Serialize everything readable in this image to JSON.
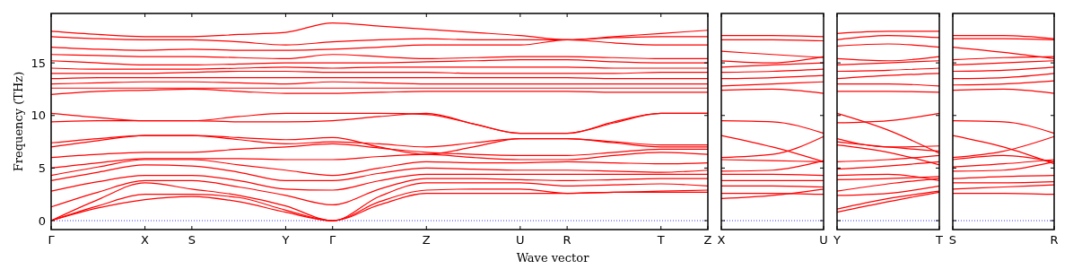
{
  "chart_data": [
    {
      "type": "line",
      "ylabel": "Frequency (THz)",
      "xlabel": "Wave vector",
      "color": "#ff0000",
      "grid": false,
      "line_style": "solid",
      "marker": "none",
      "categories": [
        "Γ",
        null,
        "X",
        "S",
        null,
        "Y",
        "Γ",
        null,
        "Z",
        null,
        "U",
        "R",
        null,
        "T",
        "Z"
      ],
      "ylim": [
        -0.85,
        19.7
      ],
      "yticks": [
        0,
        5,
        10,
        15
      ],
      "ref_lines": [
        {
          "axis": "y",
          "value": 0,
          "color": "#0000ff",
          "line_style": "dotted"
        }
      ],
      "series": [
        {
          "values": [
            0,
            1.2,
            2.0,
            2.3,
            1.8,
            0.8,
            0,
            1.5,
            2.6,
            2.6,
            2.6,
            2.6,
            2.7,
            2.7,
            2.7
          ]
        },
        {
          "values": [
            0,
            1.4,
            2.5,
            2.5,
            2.2,
            1.0,
            0,
            1.8,
            2.9,
            3.0,
            3.0,
            2.6,
            2.7,
            2.8,
            2.9
          ]
        },
        {
          "values": [
            0,
            2.0,
            3.6,
            3.0,
            2.4,
            1.4,
            0,
            2.3,
            3.6,
            3.6,
            3.6,
            3.3,
            3.4,
            3.5,
            3.3
          ]
        },
        {
          "values": [
            1.3,
            2.7,
            3.8,
            3.8,
            3.2,
            2.4,
            1.5,
            3.0,
            4.0,
            4.0,
            3.9,
            3.8,
            3.9,
            4.0,
            4.0
          ]
        },
        {
          "values": [
            2.8,
            3.7,
            4.3,
            4.3,
            3.8,
            3.0,
            2.9,
            3.8,
            4.4,
            4.4,
            4.4,
            4.4,
            4.4,
            4.4,
            4.4
          ]
        },
        {
          "values": [
            3.8,
            4.6,
            5.3,
            5.2,
            4.6,
            3.8,
            3.8,
            4.5,
            5.0,
            4.9,
            4.8,
            4.8,
            4.7,
            4.6,
            4.8
          ]
        },
        {
          "values": [
            4.3,
            5.1,
            5.8,
            5.8,
            5.3,
            4.8,
            4.3,
            5.0,
            5.6,
            5.5,
            5.5,
            5.6,
            5.5,
            5.4,
            5.5
          ]
        },
        {
          "values": [
            5.0,
            5.5,
            5.9,
            5.9,
            5.9,
            5.8,
            5.8,
            6.1,
            6.3,
            6.0,
            5.8,
            5.8,
            6.2,
            6.5,
            6.3
          ]
        },
        {
          "values": [
            6.0,
            6.3,
            6.5,
            6.5,
            6.8,
            7.0,
            7.3,
            6.9,
            6.5,
            6.3,
            6.2,
            6.2,
            6.5,
            6.8,
            6.8
          ]
        },
        {
          "values": [
            7.0,
            7.6,
            8.1,
            8.1,
            7.7,
            7.3,
            7.5,
            7.3,
            7.0,
            7.4,
            7.8,
            7.8,
            7.4,
            7.0,
            7.0
          ]
        },
        {
          "values": [
            7.4,
            7.8,
            8.1,
            8.1,
            7.9,
            7.7,
            7.9,
            7.0,
            6.3,
            7.0,
            7.8,
            7.8,
            7.5,
            7.2,
            7.2
          ]
        },
        {
          "values": [
            9.4,
            9.5,
            9.5,
            9.5,
            9.4,
            9.4,
            9.5,
            9.9,
            10.2,
            9.2,
            8.3,
            8.3,
            9.4,
            10.2,
            10.2
          ]
        },
        {
          "values": [
            10.2,
            9.8,
            9.5,
            9.5,
            9.9,
            10.2,
            10.2,
            10.2,
            10.1,
            9.2,
            8.3,
            8.3,
            9.3,
            10.2,
            10.2
          ]
        },
        {
          "values": [
            12.0,
            12.3,
            12.4,
            12.5,
            12.3,
            12.1,
            12.1,
            12.2,
            12.3,
            12.3,
            12.3,
            12.3,
            12.2,
            12.2,
            12.2
          ]
        },
        {
          "values": [
            12.6,
            12.6,
            12.6,
            12.6,
            12.6,
            12.6,
            12.6,
            12.6,
            12.6,
            12.6,
            12.6,
            12.6,
            12.6,
            12.6,
            12.6
          ]
        },
        {
          "values": [
            13.0,
            13.1,
            13.2,
            13.2,
            13.1,
            13.0,
            13.2,
            13.1,
            13.0,
            13.0,
            13.0,
            13.0,
            13.0,
            13.0,
            13.0
          ]
        },
        {
          "values": [
            13.5,
            13.6,
            13.6,
            13.6,
            13.6,
            13.6,
            13.6,
            13.6,
            13.6,
            13.6,
            13.6,
            13.6,
            13.5,
            13.5,
            13.5
          ]
        },
        {
          "values": [
            14.0,
            14.0,
            14.0,
            14.1,
            14.2,
            14.2,
            14.1,
            14.1,
            14.1,
            14.0,
            14.0,
            14.0,
            14.0,
            14.1,
            14.1
          ]
        },
        {
          "values": [
            14.5,
            14.4,
            14.4,
            14.4,
            14.5,
            14.6,
            14.5,
            14.6,
            14.6,
            14.6,
            14.6,
            14.6,
            14.5,
            14.5,
            14.5
          ]
        },
        {
          "values": [
            15.2,
            15.0,
            14.8,
            14.8,
            14.9,
            15.0,
            15.0,
            15.0,
            15.1,
            15.2,
            15.3,
            15.3,
            15.1,
            15.0,
            15.0
          ]
        },
        {
          "values": [
            15.8,
            15.7,
            15.6,
            15.6,
            15.5,
            15.4,
            15.8,
            15.6,
            15.4,
            15.5,
            15.6,
            15.6,
            15.5,
            15.4,
            15.4
          ]
        },
        {
          "values": [
            16.5,
            16.3,
            16.2,
            16.3,
            16.2,
            16.2,
            16.3,
            16.5,
            16.7,
            16.7,
            16.7,
            17.2,
            16.9,
            16.7,
            16.7
          ]
        },
        {
          "values": [
            17.5,
            17.3,
            17.2,
            17.2,
            17.0,
            16.7,
            17.0,
            17.2,
            17.3,
            17.2,
            17.2,
            17.2,
            17.4,
            17.5,
            17.5
          ]
        },
        {
          "values": [
            18.0,
            17.7,
            17.5,
            17.5,
            17.7,
            17.9,
            18.8,
            18.5,
            18.2,
            17.9,
            17.6,
            17.2,
            17.5,
            17.8,
            18.1
          ]
        }
      ]
    },
    {
      "type": "line",
      "color": "#ff0000",
      "grid": false,
      "line_style": "solid",
      "marker": "none",
      "tick_labels": "x",
      "categories": [
        "X",
        null,
        "U"
      ],
      "ylim": [
        -0.85,
        19.7
      ],
      "yticks": [
        0,
        5,
        10,
        15
      ],
      "ref_lines": [
        {
          "axis": "y",
          "value": 0,
          "color": "#0000ff",
          "line_style": "dotted"
        }
      ],
      "series": [
        {
          "values": [
            2.1,
            2.4,
            3.0
          ]
        },
        {
          "values": [
            2.6,
            2.6,
            2.5
          ]
        },
        {
          "values": [
            3.3,
            3.3,
            3.2
          ]
        },
        {
          "values": [
            3.8,
            3.8,
            3.8
          ]
        },
        {
          "values": [
            4.4,
            4.4,
            4.3
          ]
        },
        {
          "values": [
            4.7,
            4.8,
            5.7
          ]
        },
        {
          "values": [
            5.8,
            5.7,
            5.6
          ]
        },
        {
          "values": [
            6.0,
            6.3,
            8.0
          ]
        },
        {
          "values": [
            8.1,
            7.0,
            5.6
          ]
        },
        {
          "values": [
            9.5,
            9.4,
            8.3
          ]
        },
        {
          "values": [
            12.4,
            12.5,
            12.1
          ]
        },
        {
          "values": [
            12.8,
            13.0,
            13.2
          ]
        },
        {
          "values": [
            13.5,
            13.6,
            13.8
          ]
        },
        {
          "values": [
            14.1,
            14.2,
            14.4
          ]
        },
        {
          "values": [
            14.6,
            14.8,
            15.0
          ]
        },
        {
          "values": [
            15.2,
            15.0,
            15.6
          ]
        },
        {
          "values": [
            16.1,
            15.8,
            15.5
          ]
        },
        {
          "values": [
            17.2,
            17.2,
            17.1
          ]
        },
        {
          "values": [
            17.6,
            17.6,
            17.5
          ]
        }
      ]
    },
    {
      "type": "line",
      "color": "#ff0000",
      "grid": false,
      "line_style": "solid",
      "marker": "none",
      "tick_labels": "x",
      "categories": [
        "Y",
        null,
        "T"
      ],
      "ylim": [
        -0.85,
        19.7
      ],
      "yticks": [
        0,
        5,
        10,
        15
      ],
      "ref_lines": [
        {
          "axis": "y",
          "value": 0,
          "color": "#0000ff",
          "line_style": "dotted"
        }
      ],
      "series": [
        {
          "values": [
            0.8,
            1.8,
            2.7
          ]
        },
        {
          "values": [
            1.1,
            2.1,
            2.8
          ]
        },
        {
          "values": [
            2.4,
            2.6,
            3.3
          ]
        },
        {
          "values": [
            2.8,
            3.5,
            4.0
          ]
        },
        {
          "values": [
            3.9,
            4.0,
            4.2
          ]
        },
        {
          "values": [
            4.3,
            4.4,
            3.8
          ]
        },
        {
          "values": [
            4.9,
            5.2,
            5.6
          ]
        },
        {
          "values": [
            5.6,
            5.8,
            6.2
          ]
        },
        {
          "values": [
            7.2,
            6.5,
            5.3
          ]
        },
        {
          "values": [
            7.5,
            7.0,
            6.6
          ]
        },
        {
          "values": [
            7.8,
            7.0,
            7.1
          ]
        },
        {
          "values": [
            9.3,
            9.5,
            10.2
          ]
        },
        {
          "values": [
            10.2,
            8.6,
            6.4
          ]
        },
        {
          "values": [
            12.3,
            12.3,
            12.2
          ]
        },
        {
          "values": [
            13.0,
            13.0,
            12.8
          ]
        },
        {
          "values": [
            13.5,
            13.8,
            14.0
          ]
        },
        {
          "values": [
            14.2,
            14.3,
            14.5
          ]
        },
        {
          "values": [
            14.8,
            15.0,
            15.2
          ]
        },
        {
          "values": [
            15.4,
            15.2,
            15.6
          ]
        },
        {
          "values": [
            16.6,
            16.8,
            16.5
          ]
        },
        {
          "values": [
            17.2,
            17.6,
            17.4
          ]
        },
        {
          "values": [
            17.8,
            18.0,
            18.0
          ]
        }
      ]
    },
    {
      "type": "line",
      "color": "#ff0000",
      "grid": false,
      "line_style": "solid",
      "marker": "none",
      "tick_labels": "x",
      "categories": [
        "S",
        null,
        "R"
      ],
      "ylim": [
        -0.85,
        19.7
      ],
      "yticks": [
        0,
        5,
        10,
        15
      ],
      "ref_lines": [
        {
          "axis": "y",
          "value": 0,
          "color": "#0000ff",
          "line_style": "dotted"
        }
      ],
      "series": [
        {
          "values": [
            2.6,
            2.6,
            2.5
          ]
        },
        {
          "values": [
            3.0,
            3.2,
            3.4
          ]
        },
        {
          "values": [
            3.6,
            3.6,
            3.7
          ]
        },
        {
          "values": [
            4.0,
            4.2,
            4.3
          ]
        },
        {
          "values": [
            4.7,
            4.8,
            5.6
          ]
        },
        {
          "values": [
            5.1,
            5.4,
            5.8
          ]
        },
        {
          "values": [
            5.8,
            6.2,
            5.6
          ]
        },
        {
          "values": [
            6.0,
            6.6,
            8.0
          ]
        },
        {
          "values": [
            8.1,
            7.0,
            5.4
          ]
        },
        {
          "values": [
            9.5,
            9.4,
            8.3
          ]
        },
        {
          "values": [
            12.4,
            12.5,
            12.1
          ]
        },
        {
          "values": [
            12.9,
            13.0,
            13.3
          ]
        },
        {
          "values": [
            13.5,
            13.6,
            14.0
          ]
        },
        {
          "values": [
            14.2,
            14.3,
            14.6
          ]
        },
        {
          "values": [
            14.8,
            15.0,
            15.2
          ]
        },
        {
          "values": [
            15.3,
            15.5,
            15.6
          ]
        },
        {
          "values": [
            16.5,
            16.0,
            15.4
          ]
        },
        {
          "values": [
            17.3,
            17.3,
            17.2
          ]
        },
        {
          "values": [
            17.6,
            17.6,
            17.3
          ]
        }
      ]
    }
  ]
}
